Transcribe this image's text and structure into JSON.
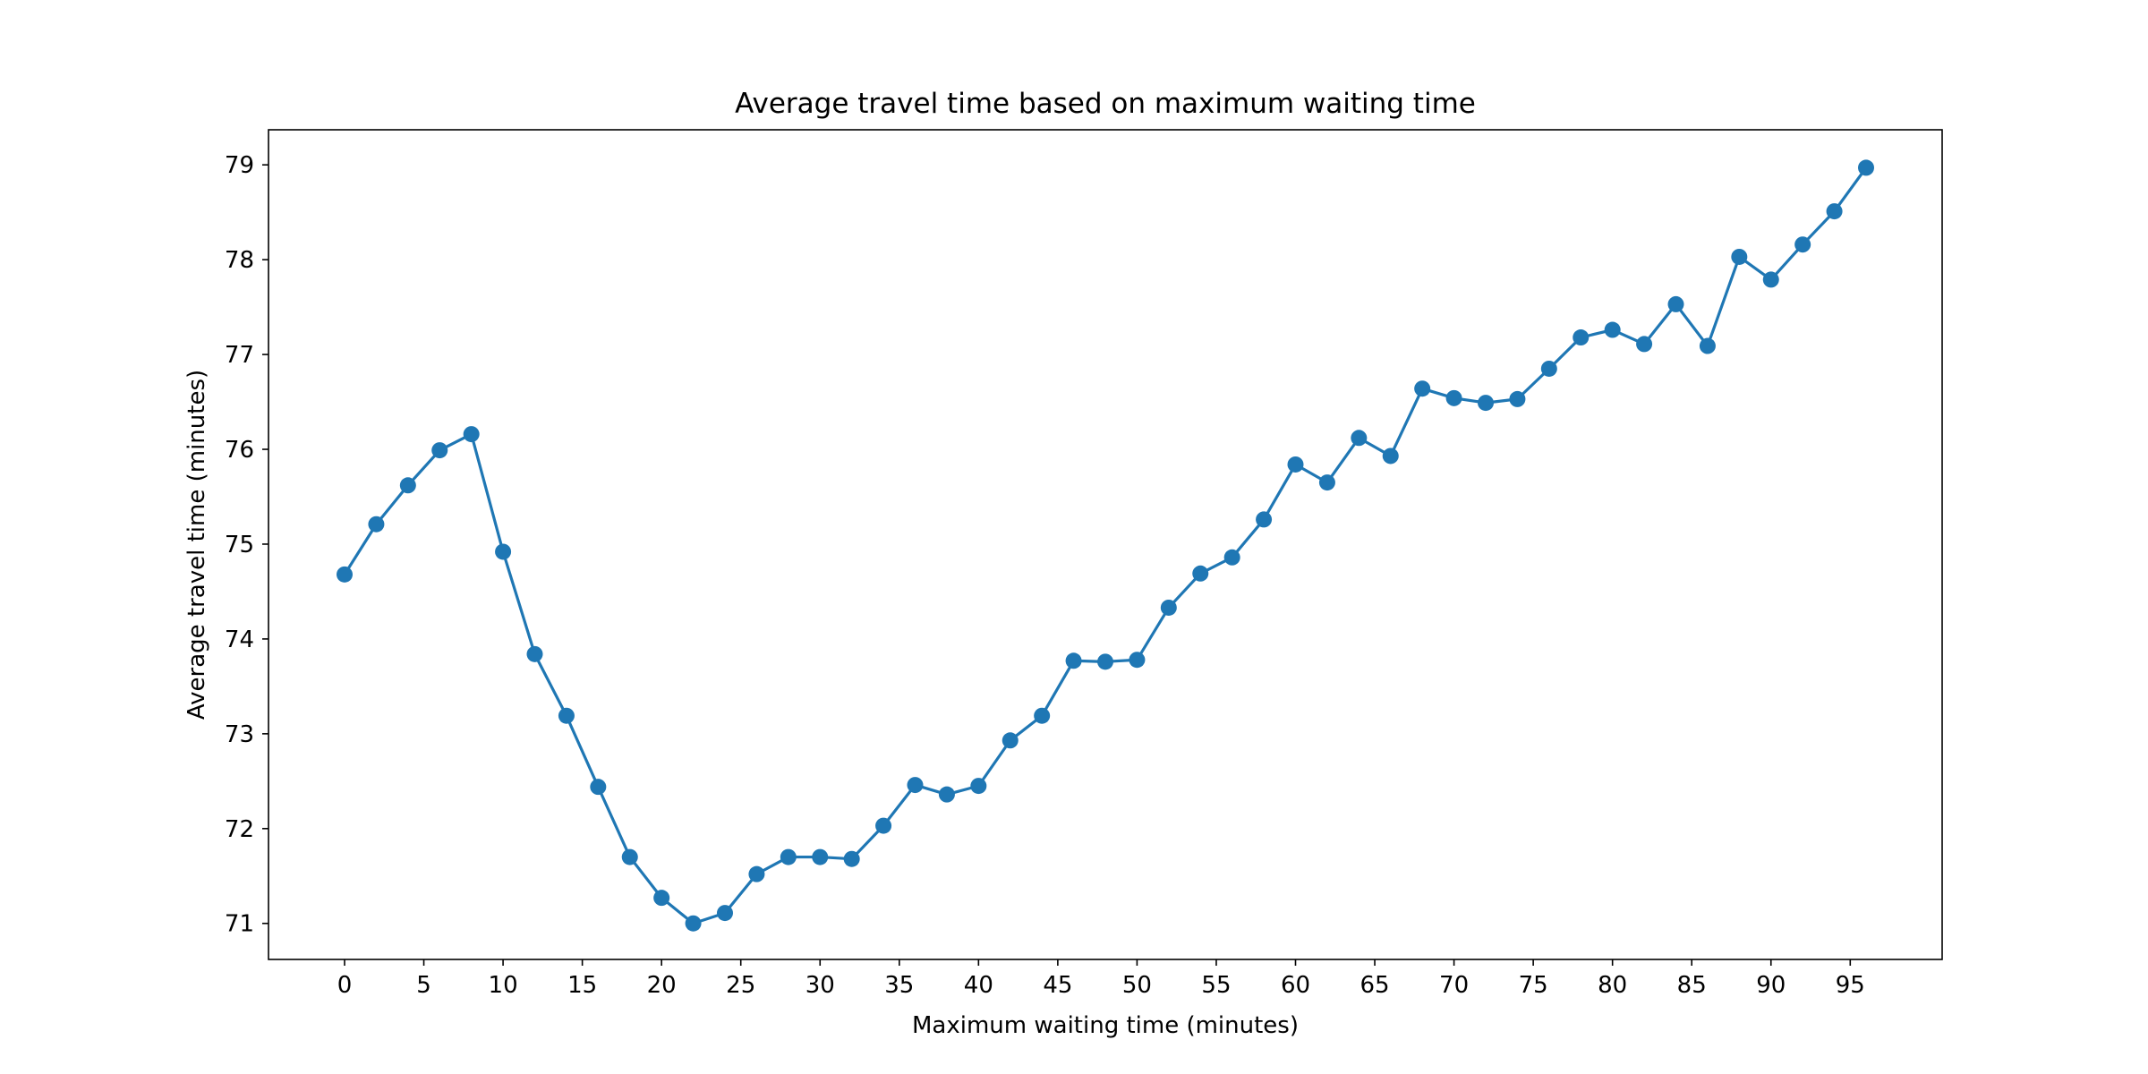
{
  "chart_data": {
    "type": "line",
    "title": "Average travel time based on maximum waiting time",
    "xlabel": "Maximum waiting time (minutes)",
    "ylabel": "Average travel time (minutes)",
    "xlim": [
      -4.8,
      100.8
    ],
    "ylim": [
      70.62,
      79.37
    ],
    "xticks": [
      0,
      5,
      10,
      15,
      20,
      25,
      30,
      35,
      40,
      45,
      50,
      55,
      60,
      65,
      70,
      75,
      80,
      85,
      90,
      95
    ],
    "yticks": [
      71,
      72,
      73,
      74,
      75,
      76,
      77,
      78,
      79
    ],
    "grid": false,
    "legend": "none",
    "series": [
      {
        "color": "#1f77b4",
        "marker": "circle",
        "x": [
          0,
          2,
          4,
          6,
          8,
          10,
          12,
          14,
          16,
          18,
          20,
          22,
          24,
          26,
          28,
          30,
          32,
          34,
          36,
          38,
          40,
          42,
          44,
          46,
          48,
          50,
          52,
          54,
          56,
          58,
          60,
          62,
          64,
          66,
          68,
          70,
          72,
          74,
          76,
          78,
          80,
          82,
          84,
          86,
          88,
          90,
          92,
          94,
          96
        ],
        "y": [
          74.68,
          75.21,
          75.62,
          75.99,
          76.16,
          74.92,
          73.84,
          73.19,
          72.44,
          71.7,
          71.27,
          71.0,
          71.11,
          71.52,
          71.7,
          71.7,
          71.68,
          72.03,
          72.46,
          72.36,
          72.45,
          72.93,
          73.19,
          73.77,
          73.76,
          73.78,
          74.33,
          74.69,
          74.86,
          75.26,
          75.84,
          75.65,
          76.12,
          75.93,
          76.64,
          76.54,
          76.49,
          76.53,
          76.85,
          77.18,
          77.26,
          77.11,
          77.53,
          77.09,
          78.03,
          77.79,
          78.16,
          78.51,
          78.97
        ]
      }
    ]
  }
}
